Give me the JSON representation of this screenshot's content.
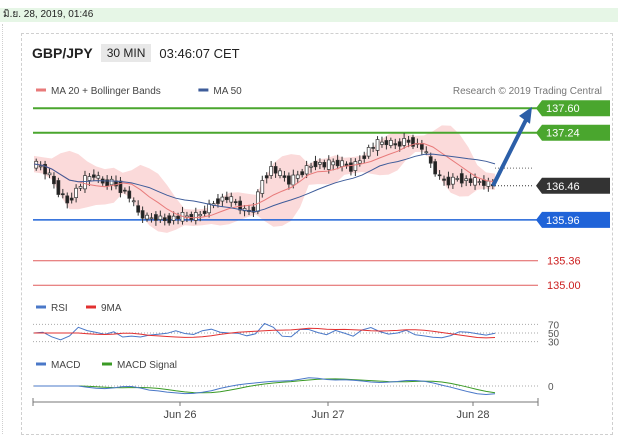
{
  "header": {
    "date": "มิ.ย. 28, 2019, 01:46",
    "pair": "GBP/JPY",
    "timeframe": "30 MIN",
    "time": "03:46:07 CET",
    "credit": "Research © 2019 Trading Central"
  },
  "colors": {
    "resistance": "#4aa62e",
    "support": "#1f63d8",
    "target": "#e05c5c",
    "price": "#333333",
    "arrow": "#2c5fa8",
    "ma20": "#e87a7a",
    "ma50": "#3e5c9a",
    "bollinger": "#fbdada",
    "candle_up": "#ffffff",
    "candle_down": "#222222"
  },
  "chart_data": [
    {
      "type": "candlestick",
      "title": "GBP/JPY",
      "legend": [
        {
          "name": "MA 20 + Bollinger Bands",
          "color": "#e87a7a"
        },
        {
          "name": "MA 50",
          "color": "#3e5c9a"
        }
      ],
      "x_ticks": [
        "Jun 26",
        "Jun 27",
        "Jun 28"
      ],
      "ylim": [
        134.9,
        137.75
      ],
      "levels": [
        {
          "value": 137.6,
          "label": "137.60",
          "kind": "resistance"
        },
        {
          "value": 137.24,
          "label": "137.24",
          "kind": "resistance"
        },
        {
          "value": 136.46,
          "label": "136.46",
          "kind": "price"
        },
        {
          "value": 135.96,
          "label": "135.96",
          "kind": "support"
        },
        {
          "value": 135.36,
          "label": "135.36",
          "kind": "target"
        },
        {
          "value": 135.0,
          "label": "135.00",
          "kind": "target"
        }
      ],
      "close_path": [
        136.78,
        136.74,
        136.6,
        136.38,
        136.22,
        136.4,
        136.55,
        136.62,
        136.5,
        136.52,
        136.42,
        136.3,
        136.06,
        135.98,
        136.0,
        135.96,
        135.99,
        136.01,
        136.0,
        136.04,
        136.16,
        136.26,
        136.28,
        136.2,
        136.08,
        136.12,
        136.55,
        136.72,
        136.62,
        136.52,
        136.62,
        136.72,
        136.8,
        136.76,
        136.8,
        136.78,
        136.72,
        136.84,
        137.0,
        137.08,
        137.1,
        137.06,
        137.12,
        137.1,
        137.02,
        136.78,
        136.56,
        136.52,
        136.58,
        136.54,
        136.52,
        136.5,
        136.46
      ]
    },
    {
      "type": "line",
      "legend": [
        {
          "name": "RSI",
          "color": "#4a78c8"
        },
        {
          "name": "9MA",
          "color": "#e23030"
        }
      ],
      "y_ticks": [
        "70",
        "50",
        "30"
      ],
      "ylim": [
        20,
        80
      ]
    },
    {
      "type": "line",
      "legend": [
        {
          "name": "MACD",
          "color": "#4a78c8"
        },
        {
          "name": "MACD Signal",
          "color": "#3a9a24"
        }
      ],
      "y_ticks": [
        "0"
      ]
    }
  ]
}
